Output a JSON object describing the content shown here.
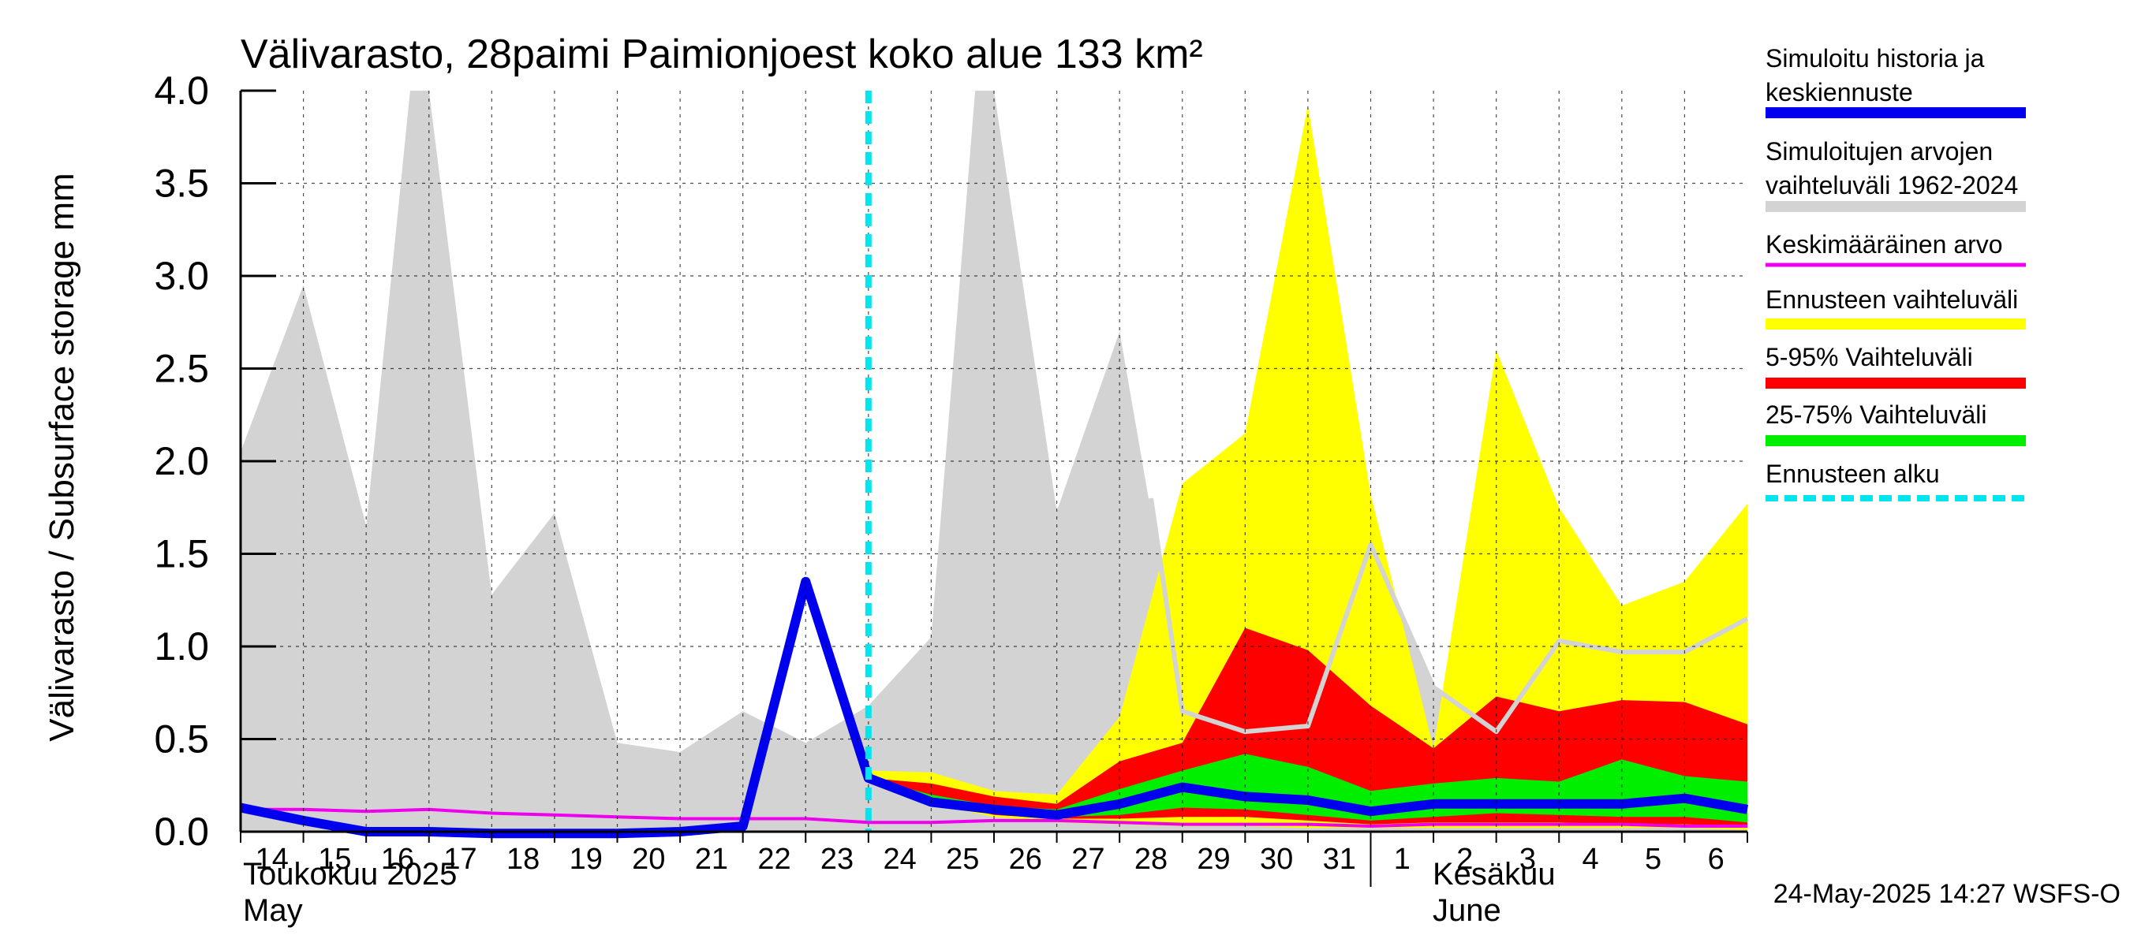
{
  "chart_data": {
    "type": "area",
    "title": "Välivarasto, 28paimi Paimionjoest koko alue 133 km²",
    "ylabel": "Välivarasto / Subsurface storage  mm",
    "ylim": [
      0,
      4
    ],
    "yticks": [
      "0.0",
      "0.5",
      "1.0",
      "1.5",
      "2.0",
      "2.5",
      "3.0",
      "3.5",
      "4.0"
    ],
    "x_labels": [
      "14",
      "15",
      "16",
      "17",
      "18",
      "19",
      "20",
      "21",
      "22",
      "23",
      "24",
      "25",
      "26",
      "27",
      "28",
      "29",
      "30",
      "31",
      "1",
      "2",
      "3",
      "4",
      "5",
      "6"
    ],
    "month_labels": {
      "may_fi": "Toukokuu  2025",
      "may_en": "May",
      "june_fi": "Kesäkuu",
      "june_en": "June"
    },
    "footer": "24-May-2025 14:27 WSFS-O",
    "grid": true,
    "forecast_start_day": 10.0,
    "colors": {
      "history_range": "#d3d3d3",
      "forecast_range": "#ffff00",
      "range_5_95": "#ff0000",
      "range_25_75": "#00ee00",
      "median": "#0000ee",
      "mean": "#ee00ee",
      "forecast_start": "#00e5ee"
    },
    "legend": [
      {
        "label": "Simuloitu historia ja",
        "label2": "keskiennuste",
        "color": "#0000ee",
        "style": "solid"
      },
      {
        "label": "Simuloitujen arvojen",
        "label2": "vaihteluväli 1962-2024",
        "color": "#d3d3d3",
        "style": "solid"
      },
      {
        "label": "Keskimääräinen arvo",
        "color": "#ee00ee",
        "style": "thin"
      },
      {
        "label": "Ennusteen vaihteluväli",
        "color": "#ffff00",
        "style": "solid"
      },
      {
        "label": "5-95% Vaihteluväli",
        "color": "#ff0000",
        "style": "solid"
      },
      {
        "label": "25-75% Vaihteluväli",
        "color": "#00ee00",
        "style": "solid"
      },
      {
        "label": "Ennusteen alku",
        "color": "#00e5ee",
        "style": "dashed"
      }
    ],
    "series": {
      "history_range": {
        "x": [
          0,
          1,
          2,
          2.7,
          3,
          4,
          5,
          6,
          7,
          8,
          9,
          10,
          11,
          11.7,
          12,
          13,
          14,
          15,
          16,
          17,
          18,
          19,
          20,
          21,
          22,
          23,
          24
        ],
        "upper": [
          2.05,
          2.95,
          1.65,
          4.0,
          4.0,
          1.28,
          1.72,
          0.48,
          0.43,
          0.65,
          0.48,
          0.68,
          1.05,
          4.0,
          4.0,
          1.73,
          2.7,
          0.75,
          0.6,
          0.58,
          1.55,
          0.78,
          0.56,
          1.05,
          0.98,
          0.98,
          1.18
        ],
        "lower": [
          0,
          0,
          0,
          0,
          0,
          0,
          0,
          0,
          0,
          0,
          0,
          0,
          0,
          0,
          0,
          0,
          0,
          0,
          0,
          0,
          0,
          0,
          0,
          0,
          0,
          0,
          0
        ]
      },
      "forecast_range": {
        "x": [
          10,
          11,
          12,
          13,
          14,
          15,
          16,
          17,
          18,
          19,
          20,
          21,
          22,
          23,
          24
        ],
        "upper": [
          0.33,
          0.32,
          0.22,
          0.2,
          0.62,
          1.88,
          2.15,
          3.92,
          1.82,
          0.45,
          2.6,
          1.75,
          1.22,
          1.35,
          1.77
        ],
        "lower": [
          0.29,
          0.15,
          0.08,
          0.05,
          0.04,
          0.03,
          0.03,
          0.02,
          0.02,
          0.02,
          0.02,
          0.02,
          0.02,
          0.02,
          0.01
        ]
      },
      "range_5_95": {
        "x": [
          10,
          11,
          12,
          13,
          14,
          15,
          16,
          17,
          18,
          19,
          20,
          21,
          22,
          23,
          24
        ],
        "upper": [
          0.29,
          0.26,
          0.19,
          0.15,
          0.38,
          0.48,
          1.1,
          0.98,
          0.68,
          0.45,
          0.73,
          0.65,
          0.71,
          0.7,
          0.58
        ],
        "lower": [
          0.29,
          0.17,
          0.09,
          0.07,
          0.07,
          0.08,
          0.08,
          0.06,
          0.04,
          0.05,
          0.05,
          0.05,
          0.04,
          0.04,
          0.03
        ]
      },
      "range_25_75": {
        "x": [
          10,
          11,
          12,
          13,
          14,
          15,
          16,
          17,
          18,
          19,
          20,
          21,
          22,
          23,
          24
        ],
        "upper": [
          0.29,
          0.2,
          0.14,
          0.12,
          0.23,
          0.33,
          0.42,
          0.35,
          0.22,
          0.26,
          0.29,
          0.27,
          0.39,
          0.3,
          0.27
        ],
        "lower": [
          0.29,
          0.17,
          0.1,
          0.08,
          0.09,
          0.13,
          0.12,
          0.09,
          0.06,
          0.08,
          0.1,
          0.09,
          0.08,
          0.08,
          0.05
        ]
      },
      "median": {
        "x": [
          0,
          1,
          2,
          3,
          4,
          5,
          6,
          7,
          8,
          9,
          10,
          11,
          12,
          13,
          14,
          15,
          16,
          17,
          18,
          19,
          20,
          21,
          22,
          23,
          24
        ],
        "y": [
          0.13,
          0.06,
          0.0,
          0.0,
          -0.01,
          -0.01,
          -0.01,
          0.0,
          0.03,
          1.35,
          0.29,
          0.16,
          0.12,
          0.09,
          0.15,
          0.24,
          0.19,
          0.17,
          0.11,
          0.15,
          0.15,
          0.15,
          0.15,
          0.18,
          0.12
        ]
      },
      "mean": {
        "x": [
          0,
          1,
          2,
          3,
          4,
          5,
          6,
          7,
          8,
          9,
          10,
          11,
          12,
          13,
          14,
          15,
          16,
          17,
          18,
          19,
          20,
          21,
          22,
          23,
          24
        ],
        "y": [
          0.12,
          0.12,
          0.11,
          0.12,
          0.1,
          0.09,
          0.08,
          0.07,
          0.07,
          0.07,
          0.05,
          0.05,
          0.06,
          0.06,
          0.05,
          0.04,
          0.04,
          0.04,
          0.03,
          0.04,
          0.04,
          0.04,
          0.04,
          0.03,
          0.03
        ]
      },
      "history_extra_line": {
        "x": [
          14.5,
          15,
          16,
          17,
          18,
          19,
          20,
          21,
          22,
          23,
          24
        ],
        "y": [
          1.8,
          0.65,
          0.54,
          0.57,
          1.55,
          0.78,
          0.54,
          1.03,
          0.97,
          0.97,
          1.15
        ]
      }
    }
  }
}
